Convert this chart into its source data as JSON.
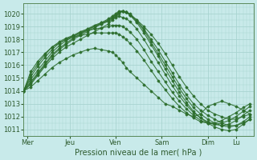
{
  "xlabel": "Pression niveau de la mer( hPa )",
  "bg_color": "#c8eaea",
  "grid_color": "#a8d4d0",
  "line_color": "#2d6e2d",
  "xlim": [
    0,
    130
  ],
  "ylim": [
    1010.5,
    1020.8
  ],
  "yticks": [
    1011,
    1012,
    1013,
    1014,
    1015,
    1016,
    1017,
    1018,
    1019,
    1020
  ],
  "xtick_labels": [
    "Mer",
    "Jeu",
    "Ven",
    "Sam",
    "Dim",
    "Lu"
  ],
  "xtick_positions": [
    2,
    26,
    52,
    78,
    104,
    120
  ],
  "series": [
    {
      "x": [
        0,
        4,
        8,
        12,
        16,
        20,
        24,
        28,
        32,
        36,
        40,
        44,
        48,
        50,
        52,
        54,
        56,
        58,
        60,
        64,
        68,
        72,
        76,
        80,
        84,
        88,
        92,
        96,
        100,
        104,
        108,
        112,
        116,
        120,
        124,
        128
      ],
      "y": [
        1014.0,
        1014.3,
        1014.8,
        1015.3,
        1015.8,
        1016.2,
        1016.5,
        1016.8,
        1017.0,
        1017.2,
        1017.3,
        1017.2,
        1017.1,
        1017.0,
        1016.8,
        1016.5,
        1016.2,
        1015.8,
        1015.5,
        1015.0,
        1014.5,
        1014.0,
        1013.5,
        1013.0,
        1012.8,
        1012.5,
        1012.2,
        1012.0,
        1012.2,
        1012.8,
        1013.0,
        1013.2,
        1013.0,
        1012.8,
        1012.5,
        1012.2
      ]
    },
    {
      "x": [
        0,
        4,
        8,
        12,
        16,
        20,
        24,
        28,
        32,
        36,
        40,
        44,
        48,
        50,
        52,
        54,
        56,
        58,
        60,
        64,
        68,
        72,
        76,
        80,
        84,
        88,
        92,
        96,
        100,
        104,
        108,
        112,
        116,
        120,
        124,
        128
      ],
      "y": [
        1014.0,
        1014.5,
        1015.2,
        1015.9,
        1016.5,
        1017.0,
        1017.4,
        1017.7,
        1018.0,
        1018.3,
        1018.6,
        1018.9,
        1019.2,
        1019.5,
        1019.8,
        1020.0,
        1020.2,
        1020.1,
        1019.9,
        1019.5,
        1019.0,
        1018.4,
        1017.7,
        1016.9,
        1016.0,
        1015.1,
        1014.3,
        1013.6,
        1013.0,
        1012.5,
        1012.2,
        1012.0,
        1011.8,
        1011.8,
        1012.0,
        1012.2
      ]
    },
    {
      "x": [
        0,
        4,
        8,
        12,
        16,
        20,
        24,
        28,
        32,
        36,
        40,
        44,
        48,
        50,
        52,
        54,
        56,
        58,
        60,
        64,
        68,
        72,
        76,
        80,
        84,
        88,
        92,
        96,
        100,
        104,
        108,
        112,
        116,
        120,
        124,
        128
      ],
      "y": [
        1014.0,
        1014.6,
        1015.3,
        1016.0,
        1016.7,
        1017.2,
        1017.6,
        1018.0,
        1018.3,
        1018.6,
        1018.9,
        1019.2,
        1019.5,
        1019.7,
        1019.9,
        1020.1,
        1020.2,
        1020.1,
        1020.0,
        1019.5,
        1018.8,
        1018.0,
        1017.2,
        1016.3,
        1015.4,
        1014.5,
        1013.7,
        1013.0,
        1012.5,
        1012.1,
        1011.8,
        1011.5,
        1011.3,
        1011.3,
        1011.5,
        1011.8
      ]
    },
    {
      "x": [
        0,
        4,
        8,
        12,
        16,
        20,
        24,
        28,
        32,
        36,
        40,
        44,
        48,
        50,
        52,
        54,
        56,
        58,
        60,
        64,
        68,
        72,
        76,
        80,
        84,
        88,
        92,
        96,
        100,
        104,
        108,
        112,
        116,
        120,
        124,
        128
      ],
      "y": [
        1014.0,
        1014.7,
        1015.4,
        1016.1,
        1016.8,
        1017.3,
        1017.7,
        1018.1,
        1018.4,
        1018.7,
        1019.0,
        1019.3,
        1019.6,
        1019.8,
        1020.0,
        1020.2,
        1020.2,
        1020.1,
        1019.9,
        1019.4,
        1018.7,
        1017.8,
        1016.9,
        1016.0,
        1015.1,
        1014.2,
        1013.4,
        1012.7,
        1012.2,
        1011.8,
        1011.5,
        1011.3,
        1011.2,
        1011.3,
        1011.6,
        1012.0
      ]
    },
    {
      "x": [
        0,
        4,
        8,
        12,
        16,
        20,
        24,
        28,
        32,
        36,
        40,
        44,
        48,
        50,
        52,
        54,
        56,
        58,
        60,
        64,
        68,
        72,
        76,
        80,
        84,
        88,
        92,
        96,
        100,
        104,
        108,
        112,
        116,
        120,
        124,
        128
      ],
      "y": [
        1014.0,
        1014.9,
        1015.6,
        1016.3,
        1017.0,
        1017.5,
        1017.9,
        1018.2,
        1018.5,
        1018.8,
        1019.1,
        1019.3,
        1019.5,
        1019.7,
        1019.9,
        1020.1,
        1020.2,
        1020.1,
        1019.9,
        1019.3,
        1018.5,
        1017.6,
        1016.7,
        1015.7,
        1014.8,
        1013.9,
        1013.1,
        1012.4,
        1011.9,
        1011.5,
        1011.2,
        1011.0,
        1010.9,
        1011.0,
        1011.4,
        1011.8
      ]
    },
    {
      "x": [
        0,
        4,
        8,
        12,
        16,
        20,
        24,
        28,
        32,
        36,
        40,
        44,
        48,
        50,
        52,
        54,
        56,
        58,
        60,
        64,
        68,
        72,
        76,
        80,
        84,
        88,
        92,
        96,
        100,
        104,
        108,
        112,
        116,
        120,
        124,
        128
      ],
      "y": [
        1014.0,
        1015.1,
        1015.9,
        1016.6,
        1017.2,
        1017.7,
        1018.0,
        1018.3,
        1018.6,
        1018.8,
        1019.0,
        1019.2,
        1019.4,
        1019.6,
        1019.7,
        1019.8,
        1019.7,
        1019.6,
        1019.4,
        1018.8,
        1018.0,
        1017.1,
        1016.2,
        1015.3,
        1014.4,
        1013.6,
        1012.9,
        1012.3,
        1011.9,
        1011.6,
        1011.4,
        1011.3,
        1011.4,
        1011.7,
        1012.1,
        1012.5
      ]
    },
    {
      "x": [
        0,
        4,
        8,
        12,
        16,
        20,
        24,
        28,
        32,
        36,
        40,
        44,
        48,
        50,
        52,
        54,
        56,
        58,
        60,
        64,
        68,
        72,
        76,
        80,
        84,
        88,
        92,
        96,
        100,
        104,
        108,
        112,
        116,
        120,
        124,
        128
      ],
      "y": [
        1014.0,
        1015.3,
        1016.1,
        1016.8,
        1017.4,
        1017.8,
        1018.1,
        1018.3,
        1018.5,
        1018.7,
        1018.8,
        1018.9,
        1019.0,
        1019.1,
        1019.1,
        1019.1,
        1019.0,
        1018.8,
        1018.6,
        1018.0,
        1017.2,
        1016.3,
        1015.5,
        1014.7,
        1013.9,
        1013.2,
        1012.6,
        1012.1,
        1011.7,
        1011.5,
        1011.4,
        1011.5,
        1011.7,
        1012.0,
        1012.4,
        1012.8
      ]
    },
    {
      "x": [
        0,
        4,
        8,
        12,
        16,
        20,
        24,
        28,
        32,
        36,
        40,
        44,
        48,
        50,
        52,
        54,
        56,
        58,
        60,
        64,
        68,
        72,
        76,
        80,
        84,
        88,
        92,
        96,
        100,
        104,
        108,
        112,
        116,
        120,
        124,
        128
      ],
      "y": [
        1014.0,
        1015.5,
        1016.3,
        1016.9,
        1017.4,
        1017.7,
        1018.0,
        1018.2,
        1018.3,
        1018.4,
        1018.5,
        1018.5,
        1018.5,
        1018.5,
        1018.5,
        1018.4,
        1018.2,
        1018.0,
        1017.7,
        1017.1,
        1016.4,
        1015.6,
        1014.8,
        1014.1,
        1013.4,
        1012.8,
        1012.3,
        1011.9,
        1011.6,
        1011.5,
        1011.5,
        1011.7,
        1012.0,
        1012.3,
        1012.7,
        1013.0
      ]
    }
  ]
}
